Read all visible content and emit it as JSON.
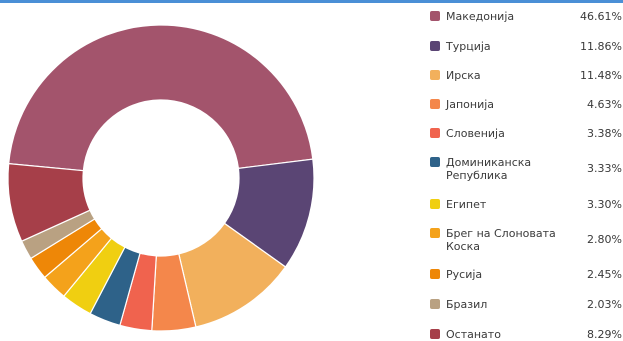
{
  "colors": {
    "top_rule": "#4a8fd6"
  },
  "chart_data": {
    "type": "pie",
    "variant": "donut",
    "unit": "%",
    "legend_position": "right",
    "categories": [
      "Македонија",
      "Турција",
      "Ирска",
      "Јапонија",
      "Словенија",
      "Доминиканска Република",
      "Египет",
      "Брег на Слоновата Коска",
      "Русија",
      "Бразил",
      "Останато"
    ],
    "values": [
      46.61,
      11.86,
      11.48,
      4.63,
      3.38,
      3.33,
      3.3,
      2.8,
      2.45,
      2.03,
      8.29
    ],
    "value_labels": [
      "46.61%",
      "11.86%",
      "11.48%",
      "4.63%",
      "3.38%",
      "3.33%",
      "3.30%",
      "2.80%",
      "2.45%",
      "2.03%",
      "8.29%"
    ],
    "colors": [
      "#a3546c",
      "#5a4574",
      "#f2b05c",
      "#f4874b",
      "#f0634e",
      "#2e6289",
      "#f0cf11",
      "#f4a21b",
      "#ee8707",
      "#b9a182",
      "#a63f49"
    ]
  }
}
